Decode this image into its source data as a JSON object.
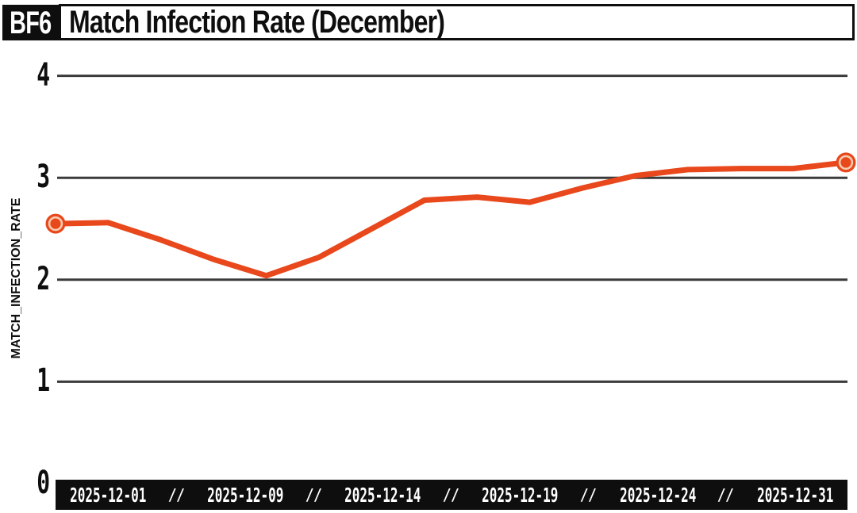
{
  "header": {
    "badge": "BF6",
    "title": "Match Infection Rate (December)"
  },
  "chart_data": {
    "type": "line",
    "title": "Match Infection Rate (December)",
    "xlabel": "",
    "ylabel": "MATCH_INFECTION_RATE",
    "ylim": [
      0,
      4
    ],
    "yticks": [
      0,
      1,
      2,
      3,
      4
    ],
    "grid": "horizontal",
    "legend_position": "none",
    "x_tick_labels": [
      "2025-12-01",
      "2025-12-09",
      "2025-12-14",
      "2025-12-19",
      "2025-12-24",
      "2025-12-31"
    ],
    "x_tick_separator": "//",
    "series": [
      {
        "name": "MATCH_INFECTION_RATE",
        "color": "#e8481c",
        "endpoint_markers": true,
        "dates": [
          "2025-12-01",
          "2025-12-03",
          "2025-12-05",
          "2025-12-07",
          "2025-12-09",
          "2025-12-11",
          "2025-12-13",
          "2025-12-15",
          "2025-12-17",
          "2025-12-19",
          "2025-12-21",
          "2025-12-23",
          "2025-12-25",
          "2025-12-27",
          "2025-12-29",
          "2025-12-31"
        ],
        "values": [
          2.55,
          2.56,
          2.39,
          2.2,
          2.04,
          2.22,
          2.5,
          2.78,
          2.81,
          2.76,
          2.9,
          3.02,
          3.08,
          3.09,
          3.09,
          3.15
        ]
      }
    ]
  },
  "colors": {
    "line": "#e8481c",
    "marker_ring": "#f6ccb0",
    "grid": "#3a3a3a",
    "ink": "#0e0e0e",
    "axis_bar_bg": "#0e0e0e",
    "axis_bar_text": "#ffffff",
    "background": "#ffffff"
  }
}
